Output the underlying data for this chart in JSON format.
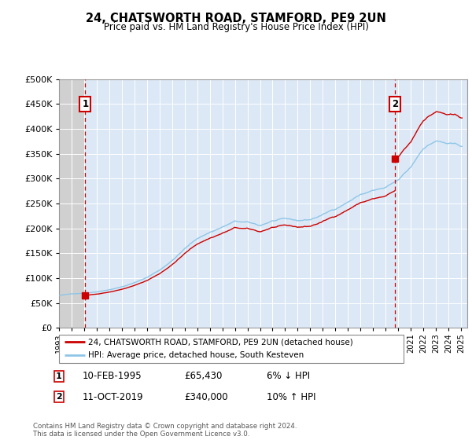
{
  "title": "24, CHATSWORTH ROAD, STAMFORD, PE9 2UN",
  "subtitle": "Price paid vs. HM Land Registry's House Price Index (HPI)",
  "sale1_date": "10-FEB-1995",
  "sale1_price": 65430,
  "sale2_date": "11-OCT-2019",
  "sale2_price": 340000,
  "legend_line1": "24, CHATSWORTH ROAD, STAMFORD, PE9 2UN (detached house)",
  "legend_line2": "HPI: Average price, detached house, South Kesteven",
  "footer": "Contains HM Land Registry data © Crown copyright and database right 2024.\nThis data is licensed under the Open Government Licence v3.0.",
  "hpi_color": "#8ec6e8",
  "price_color": "#cc0000",
  "dashed_line_color": "#cc0000",
  "background_plot": "#dce8f5",
  "ylim": [
    0,
    500000
  ],
  "yticks": [
    0,
    50000,
    100000,
    150000,
    200000,
    250000,
    300000,
    350000,
    400000,
    450000,
    500000
  ],
  "xmin": 1993.0,
  "xmax": 2025.5
}
